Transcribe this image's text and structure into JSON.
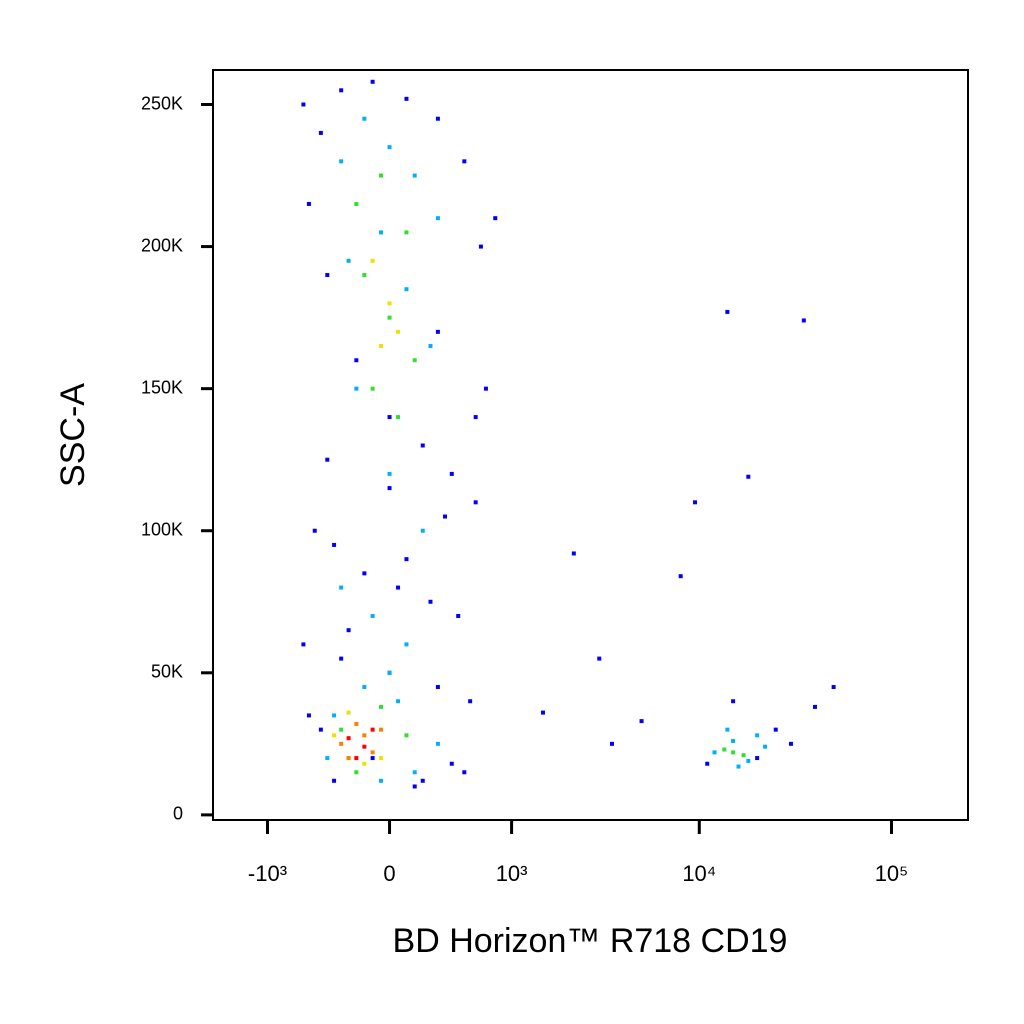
{
  "chart_data": {
    "type": "scatter",
    "xlabel": "BD Horizon™ R718  CD19",
    "ylabel": "SSC-A",
    "xscale": "biexponential",
    "xlim": [
      -2000,
      250000
    ],
    "ylim": [
      -1800,
      262144
    ],
    "xticks": [
      {
        "value": -1000,
        "label": "-10³"
      },
      0,
      {
        "value": 1000,
        "label": "10³"
      },
      {
        "value": 10000,
        "label": "10⁴"
      },
      {
        "value": 100000,
        "label": "10⁵"
      }
    ],
    "yticks": [
      0,
      {
        "value": 50000,
        "label": "50K"
      },
      {
        "value": 100000,
        "label": "100K"
      },
      {
        "value": 150000,
        "label": "150K"
      },
      {
        "value": 200000,
        "label": "200K"
      },
      {
        "value": 250000,
        "label": "250K"
      }
    ],
    "series": [
      {
        "color": "#0000ff",
        "x": [
          -600,
          -450,
          -300,
          -100,
          100,
          300,
          500,
          650,
          -550,
          -400,
          -200,
          0,
          200,
          400,
          600,
          -500,
          -350,
          -150,
          50,
          250,
          450,
          -600,
          -300,
          0,
          300,
          550,
          -450,
          -100,
          200,
          500,
          -350,
          150,
          400,
          -550,
          -250,
          100,
          350,
          600,
          -400,
          0,
          300,
          1500,
          3000,
          5000,
          8000,
          9500,
          20000,
          30000,
          40000,
          50000,
          15000,
          11000,
          25000,
          14000,
          18000,
          35000,
          3500,
          2200,
          700,
          800
        ],
        "values": [
          250000,
          240000,
          255000,
          258000,
          252000,
          245000,
          230000,
          200000,
          215000,
          190000,
          160000,
          140000,
          130000,
          120000,
          110000,
          100000,
          95000,
          85000,
          80000,
          75000,
          70000,
          60000,
          55000,
          50000,
          45000,
          40000,
          30000,
          20000,
          12000,
          15000,
          12000,
          10000,
          18000,
          35000,
          65000,
          90000,
          105000,
          140000,
          125000,
          115000,
          170000,
          36000,
          55000,
          33000,
          84000,
          110000,
          20000,
          25000,
          38000,
          45000,
          40000,
          18000,
          30000,
          177000,
          119000,
          174000,
          25000,
          92000,
          150000,
          210000
        ]
      },
      {
        "color": "#00b0ff",
        "x": [
          -300,
          -150,
          0,
          150,
          300,
          -250,
          -50,
          100,
          250,
          -200,
          0,
          200,
          -300,
          -100,
          100,
          -150,
          50,
          -350,
          -50,
          150,
          300,
          -400,
          0,
          12000,
          15000,
          18000,
          22000,
          14000,
          20000,
          16000
        ],
        "values": [
          230000,
          245000,
          235000,
          225000,
          210000,
          195000,
          205000,
          185000,
          165000,
          150000,
          120000,
          100000,
          80000,
          70000,
          60000,
          45000,
          40000,
          35000,
          12000,
          15000,
          25000,
          20000,
          50000,
          22000,
          26000,
          19000,
          24000,
          30000,
          28000,
          17000
        ]
      },
      {
        "color": "#30e030",
        "x": [
          -200,
          -50,
          100,
          -150,
          0,
          150,
          -100,
          50,
          -250,
          -50,
          -300,
          -200,
          100,
          15000,
          17000,
          13500
        ],
        "values": [
          215000,
          225000,
          205000,
          190000,
          175000,
          160000,
          150000,
          140000,
          20000,
          38000,
          30000,
          15000,
          28000,
          22000,
          21000,
          23000
        ]
      },
      {
        "color": "#f0e000",
        "x": [
          -100,
          0,
          -50,
          50,
          -350,
          -250,
          -50,
          -150
        ],
        "values": [
          195000,
          180000,
          165000,
          170000,
          28000,
          36000,
          20000,
          18000
        ]
      },
      {
        "color": "#ff8000",
        "x": [
          -300,
          -200,
          -100,
          -250,
          -150,
          -50
        ],
        "values": [
          25000,
          32000,
          22000,
          20000,
          28000,
          30000
        ]
      },
      {
        "color": "#ff0000",
        "x": [
          -250,
          -150,
          -200,
          -100
        ],
        "values": [
          27000,
          24000,
          20000,
          30000
        ]
      }
    ]
  }
}
